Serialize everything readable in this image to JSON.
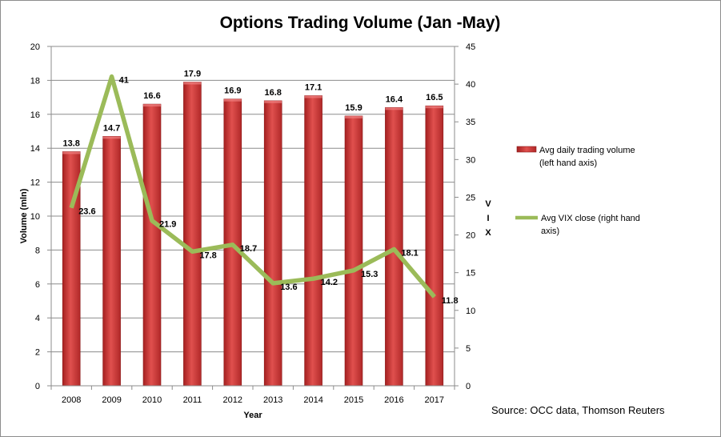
{
  "chart_data": {
    "type": "bar",
    "title": "Options Trading Volume (Jan -May)",
    "xlabel": "Year",
    "ylabel": "Volume (mln)",
    "y2label": "VIX",
    "categories": [
      "2008",
      "2009",
      "2010",
      "2011",
      "2012",
      "2013",
      "2014",
      "2015",
      "2016",
      "2017"
    ],
    "series": [
      {
        "name": "Avg daily trading volume (left hand axis)",
        "type": "bar",
        "axis": "left",
        "color": "#d23a3a",
        "values": [
          13.8,
          14.7,
          16.6,
          17.9,
          16.9,
          16.8,
          17.1,
          15.9,
          16.4,
          16.5
        ],
        "labels": [
          "13.8",
          "14.7",
          "16.6",
          "17.9",
          "16.9",
          "16.8",
          "17.1",
          "15.9",
          "16.4",
          "16.5"
        ]
      },
      {
        "name": "Avg VIX close (right hand axis)",
        "type": "line",
        "axis": "right",
        "color": "#9bbb59",
        "values": [
          23.6,
          41,
          21.9,
          17.8,
          18.7,
          13.6,
          14.2,
          15.3,
          18.1,
          11.8
        ],
        "labels": [
          "23.6",
          "41",
          "21.9",
          "17.8",
          "18.7",
          "13.6",
          "14.2",
          "15.3",
          "18.1",
          "11.8"
        ]
      }
    ],
    "ylim": [
      0,
      20
    ],
    "y_ticks": [
      "0",
      "2",
      "4",
      "6",
      "8",
      "10",
      "12",
      "14",
      "16",
      "18",
      "20"
    ],
    "y2lim": [
      0,
      45
    ],
    "y2_ticks": [
      "0",
      "5",
      "10",
      "15",
      "20",
      "25",
      "30",
      "35",
      "40",
      "45"
    ],
    "legend": {
      "position": "right",
      "entries": [
        [
          "Avg daily trading volume",
          "(left hand axis)"
        ],
        [
          "Avg VIX close (right hand",
          "axis)"
        ]
      ]
    },
    "source": "Source: OCC data, Thomson Reuters"
  }
}
